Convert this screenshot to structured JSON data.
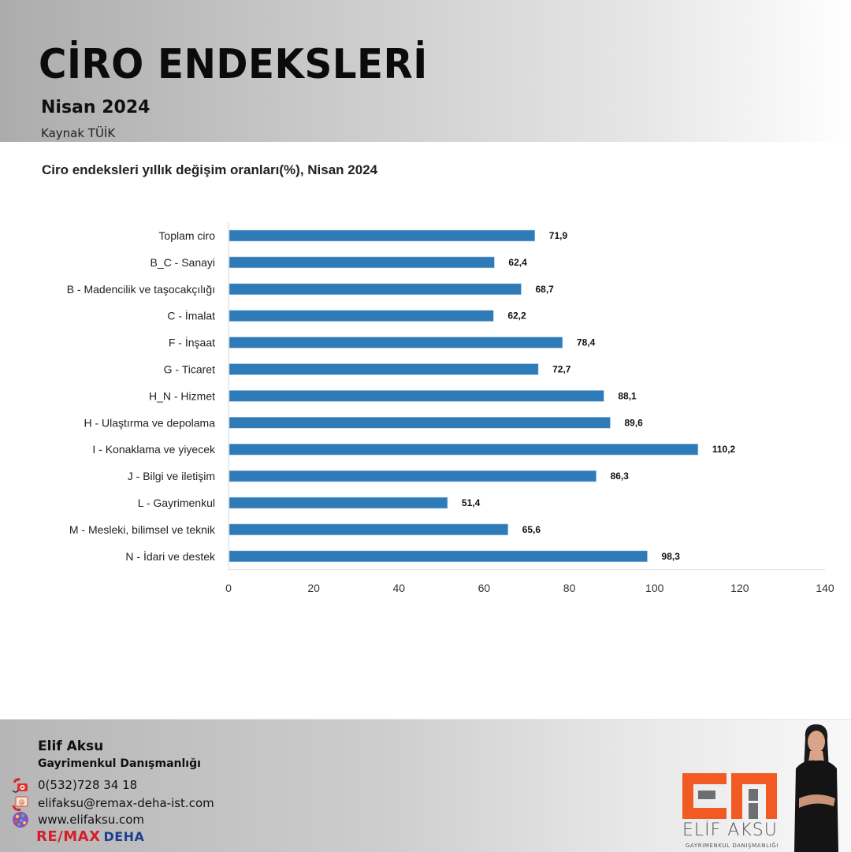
{
  "header": {
    "title": "CİRO ENDEKSLERİ",
    "subtitle": "Nisan 2024",
    "source": "Kaynak TÜİK"
  },
  "colors": {
    "bar": "#2f7bb8",
    "accent_orange": "#f15a22",
    "remax_red": "#d5202b",
    "remax_blue": "#1f3e8f"
  },
  "chart_data": {
    "type": "bar",
    "orientation": "horizontal",
    "title": "Ciro endeksleri yıllık değişim oranları(%), Nisan 2024",
    "xlabel": "",
    "ylabel": "",
    "xlim": [
      0,
      140
    ],
    "xticks": [
      "0",
      "20",
      "40",
      "60",
      "80",
      "100",
      "120",
      "140"
    ],
    "xtick_values": [
      0,
      20,
      40,
      60,
      80,
      100,
      120,
      140
    ],
    "grid": false,
    "categories": [
      "Toplam ciro",
      "B_C - Sanayi",
      "B - Madencilik ve taşocakçılığı",
      "C - İmalat",
      "F - İnşaat",
      "G - Ticaret",
      "H_N - Hizmet",
      "H - Ulaştırma ve depolama",
      "I - Konaklama ve yiyecek",
      "J - Bilgi ve iletişim",
      "L - Gayrimenkul",
      "M - Mesleki, bilimsel ve teknik",
      "N - İdari ve destek"
    ],
    "values": [
      71.9,
      62.4,
      68.7,
      62.2,
      78.4,
      72.7,
      88.1,
      89.6,
      110.2,
      86.3,
      51.4,
      65.6,
      98.3
    ],
    "data_labels": [
      "71,9",
      "62,4",
      "68,7",
      "62,2",
      "78,4",
      "72,7",
      "88,1",
      "89,6",
      "110,2",
      "86,3",
      "51,4",
      "65,6",
      "98,3"
    ]
  },
  "footer": {
    "name": "Elif Aksu",
    "role": "Gayrimenkul Danışmanlığı",
    "phone": "0(532)728 34 18",
    "email": "elifaksu@remax-deha-ist.com",
    "website": "www.elifaksu.com",
    "brand_re": "RE/MAX",
    "brand_deha": "DEHA",
    "logo_name": "ELİF AKSU",
    "logo_sub": "GAYRIMENKUL DANIŞMANLIĞI",
    "icons": [
      "phone-icon",
      "email-icon",
      "globe-icon"
    ]
  }
}
